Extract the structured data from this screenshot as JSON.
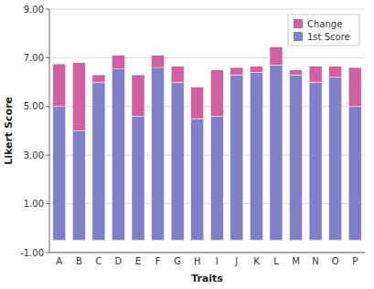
{
  "chart_data": {
    "type": "bar",
    "stacked": true,
    "x_label": "Traits",
    "y_label": "Likert Score",
    "categories": [
      "A",
      "B",
      "C",
      "D",
      "E",
      "F",
      "G",
      "H",
      "I",
      "J",
      "K",
      "L",
      "M",
      "N",
      "O",
      "P"
    ],
    "bottom": -0.5,
    "series": [
      {
        "name": "1st Score",
        "color": "#8080c8",
        "values": [
          5.5,
          4.5,
          6.5,
          7.6,
          5.1,
          7.6,
          6.5,
          5.0,
          5.1,
          6.8,
          6.9,
          7.2,
          6.8,
          6.5,
          6.7,
          5.5
        ]
      },
      {
        "name": "Change",
        "color": "#d060a0",
        "values": [
          1.75,
          2.8,
          0.3,
          -0.55,
          1.7,
          -0.5,
          0.65,
          1.3,
          1.9,
          0.3,
          0.25,
          0.75,
          0.2,
          0.65,
          0.45,
          1.6
        ]
      }
    ],
    "ylim": [
      -1.0,
      9.0
    ],
    "yticks": [
      {
        "value": -1.0,
        "label": "-1.00"
      },
      {
        "value": 1.0,
        "label": "1.00"
      },
      {
        "value": 3.0,
        "label": "3.00"
      },
      {
        "value": 5.0,
        "label": "5.00"
      },
      {
        "value": 7.0,
        "label": "7.00"
      },
      {
        "value": 9.0,
        "label": "9.00"
      }
    ],
    "grid": true,
    "legend": "upper right"
  }
}
